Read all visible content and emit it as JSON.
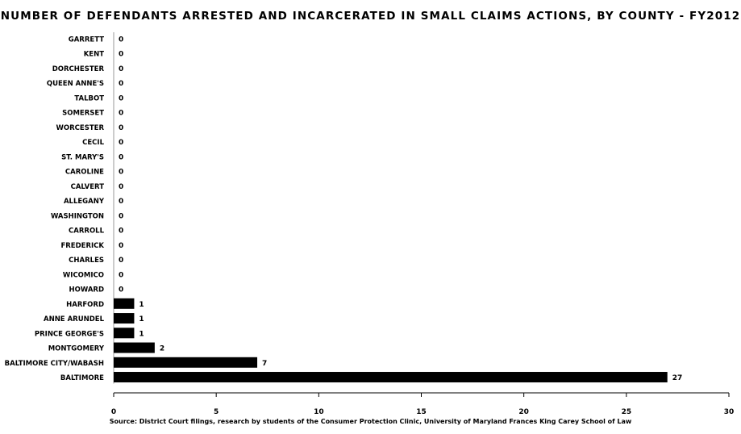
{
  "chart_data": {
    "type": "bar",
    "orientation": "horizontal",
    "title": "NUMBER OF DEFENDANTS ARRESTED AND INCARCERATED IN SMALL CLAIMS ACTIONS, BY COUNTY - FY2012",
    "categories": [
      "GARRETT",
      "KENT",
      "DORCHESTER",
      "QUEEN ANNE'S",
      "TALBOT",
      "SOMERSET",
      "WORCESTER",
      "CECIL",
      "ST. MARY'S",
      "CAROLINE",
      "CALVERT",
      "ALLEGANY",
      "WASHINGTON",
      "CARROLL",
      "FREDERICK",
      "CHARLES",
      "WICOMICO",
      "HOWARD",
      "HARFORD",
      "ANNE ARUNDEL",
      "PRINCE GEORGE'S",
      "MONTGOMERY",
      "BALTIMORE CITY/WABASH",
      "BALTIMORE"
    ],
    "values": [
      0,
      0,
      0,
      0,
      0,
      0,
      0,
      0,
      0,
      0,
      0,
      0,
      0,
      0,
      0,
      0,
      0,
      0,
      1,
      1,
      1,
      2,
      7,
      27
    ],
    "xlim": [
      0,
      30
    ],
    "xticks": [
      0,
      5,
      10,
      15,
      20,
      25,
      30
    ],
    "bar_color": "#000000",
    "grid": false,
    "source": "Source: District Court filings, research by students of the Consumer Protection Clinic, University of Maryland Frances King Carey School of Law"
  }
}
